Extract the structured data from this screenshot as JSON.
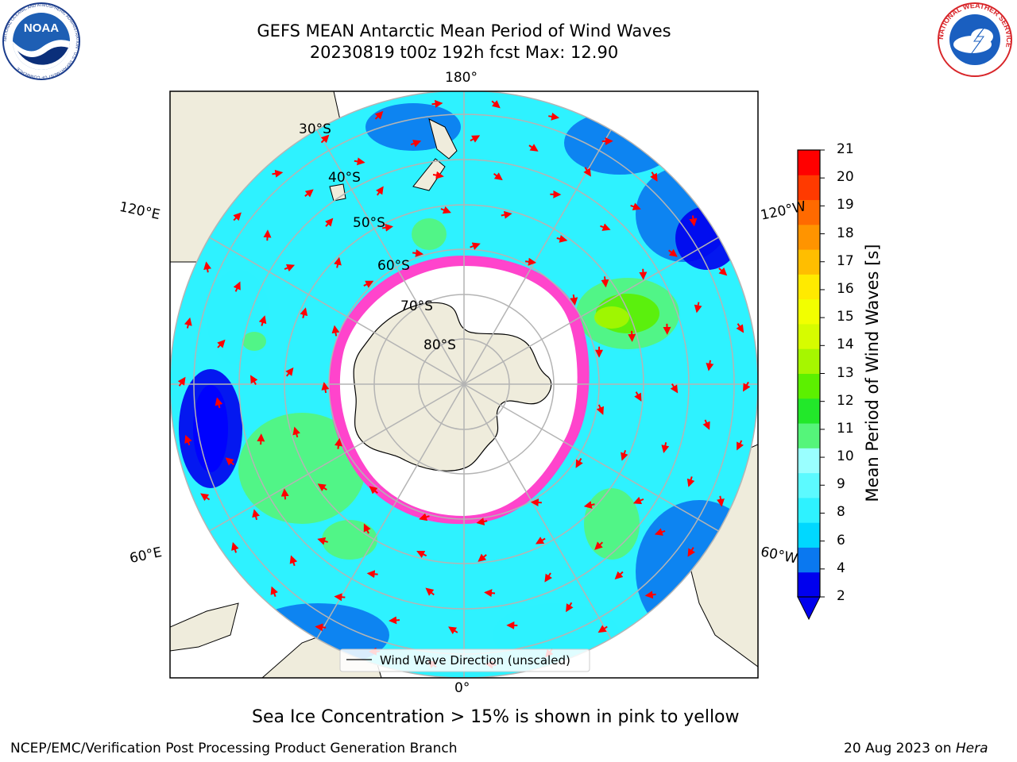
{
  "title": {
    "line1": "GEFS MEAN Antarctic Mean Period of Wind Waves",
    "line2": "20230819 t00z 192h fcst   Max: 12.90"
  },
  "graticule_labels": {
    "lon_top": "180°",
    "lon_bottom": "0°",
    "lon_left_upper": "120°E",
    "lon_left_lower": "60°E",
    "lon_right_upper": "120°W",
    "lon_right_lower": "60°W",
    "lat_30": "30°S",
    "lat_40": "40°S",
    "lat_50": "50°S",
    "lat_60": "60°S",
    "lat_70": "70°S",
    "lat_80": "80°S"
  },
  "legend": {
    "label": "Wind Wave Direction (unscaled)"
  },
  "colorbar": {
    "label": "Mean Period of Wind Waves [s]",
    "ticks": [
      "21",
      "20",
      "19",
      "18",
      "17",
      "16",
      "15",
      "14",
      "13",
      "12",
      "11",
      "10",
      "9",
      "8",
      "6",
      "4",
      "2"
    ],
    "colors": [
      "#0000ee",
      "#0a78f0",
      "#00d8ff",
      "#2ef2ff",
      "#5cfaff",
      "#9affff",
      "#55f57a",
      "#22e82a",
      "#5cf000",
      "#a6f600",
      "#d6fc00",
      "#f2ff00",
      "#ffea00",
      "#ffbe00",
      "#ff9400",
      "#ff6a00",
      "#ff3a00",
      "#ff0000"
    ],
    "extend_color": "#0000ee"
  },
  "map_colors": {
    "land": "#efecdc",
    "ocean_base": "#2ef2ff",
    "ice": "#ffffff",
    "ice_edge": "#ff44cc",
    "arrow": "#ff0000",
    "grid": "#b4b4b4"
  },
  "caption": "Sea Ice Concentration > 15% is shown in pink to yellow",
  "footer": {
    "left": "NCEP/EMC/Verification Post Processing Product Generation Branch",
    "right_prefix": "20 Aug 2023 on ",
    "right_host": "Hera"
  },
  "logos": {
    "noaa_text": "NOAA",
    "noaa_ring": "NATIONAL OCEANIC AND ATMOSPHERIC ADMINISTRATION · U.S. DEPARTMENT OF COMMERCE",
    "nws_ring": "NATIONAL WEATHER SERVICE"
  },
  "icons": [
    "noaa-logo-icon",
    "nws-logo-icon"
  ]
}
